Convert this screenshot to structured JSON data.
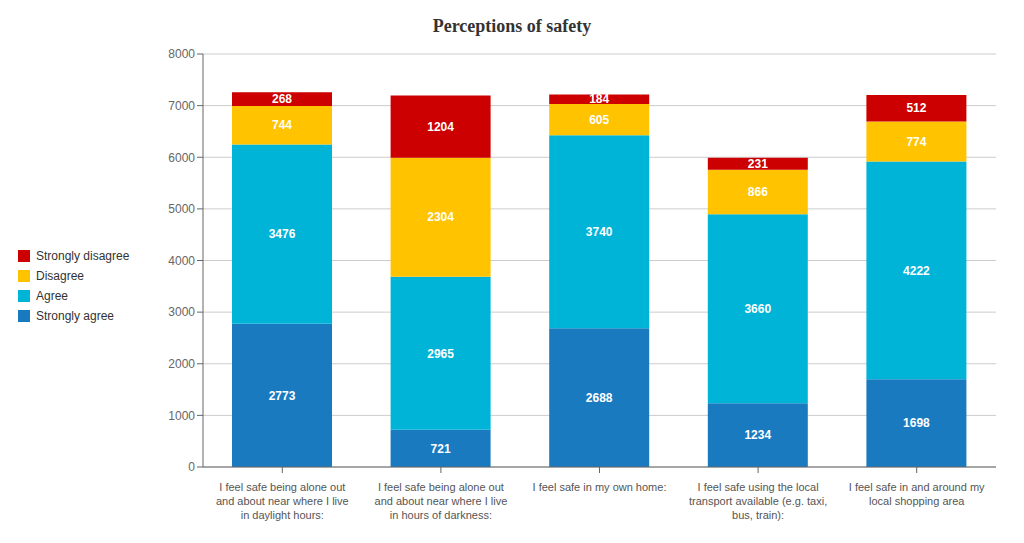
{
  "chart_data": {
    "type": "bar",
    "title": "Perceptions of safety",
    "stacked": true,
    "categories": [
      "I feel safe being alone out\nand about near where I live\nin daylight hours:",
      "I feel safe being alone out\nand about near where I live\nin hours of darkness:",
      "I feel safe in my own home:",
      "I feel safe using the local\ntransport available (e.g. taxi,\nbus, train):",
      "I feel safe in and around my\nlocal shopping area"
    ],
    "series": [
      {
        "name": "Strongly agree",
        "color": "#1a7abf",
        "values": [
          2773,
          721,
          2688,
          1234,
          1698
        ]
      },
      {
        "name": "Agree",
        "color": "#00b4d8",
        "values": [
          3476,
          2965,
          3740,
          3660,
          4222
        ]
      },
      {
        "name": "Disagree",
        "color": "#ffc300",
        "values": [
          744,
          2304,
          605,
          866,
          774
        ]
      },
      {
        "name": "Strongly disagree",
        "color": "#cc0000",
        "values": [
          268,
          1204,
          184,
          231,
          512
        ]
      }
    ],
    "ylim": [
      0,
      8000
    ],
    "yticks": [
      0,
      1000,
      2000,
      3000,
      4000,
      5000,
      6000,
      7000,
      8000
    ],
    "grid": true,
    "legend": "left",
    "data_labels": true
  }
}
